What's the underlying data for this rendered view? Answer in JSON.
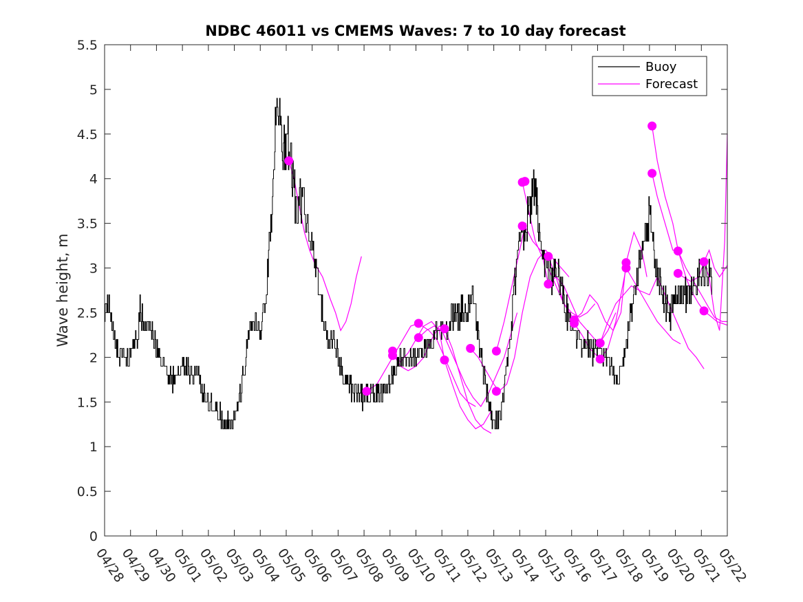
{
  "chart_data": {
    "type": "line",
    "title": "NDBC 46011 vs CMEMS Waves: 7 to 10 day forecast",
    "xlabel": "",
    "ylabel": "Wave height, m",
    "ylim": [
      0,
      5.5
    ],
    "yticks": [
      "0",
      "0.5",
      "1",
      "1.5",
      "2",
      "2.5",
      "3",
      "3.5",
      "4",
      "4.5",
      "5",
      "5.5"
    ],
    "xlim": [
      0,
      24
    ],
    "xticks": [
      "04/28",
      "04/29",
      "04/30",
      "05/01",
      "05/02",
      "05/03",
      "05/04",
      "05/05",
      "05/06",
      "05/07",
      "05/08",
      "05/09",
      "05/10",
      "05/11",
      "05/12",
      "05/13",
      "05/14",
      "05/15",
      "05/16",
      "05/17",
      "05/18",
      "05/19",
      "05/20",
      "05/21",
      "05/22"
    ],
    "grid": false,
    "legend_position": "top-right",
    "legend": [
      "Buoy",
      "Forecast"
    ],
    "colors": {
      "buoy": "#000000",
      "forecast": "#ff00ff"
    },
    "buoy_keypoints": [
      [
        0.0,
        2.5
      ],
      [
        0.15,
        2.65
      ],
      [
        0.35,
        2.25
      ],
      [
        0.5,
        2.05
      ],
      [
        0.8,
        2.0
      ],
      [
        1.0,
        2.05
      ],
      [
        1.3,
        2.3
      ],
      [
        1.35,
        2.6
      ],
      [
        1.5,
        2.3
      ],
      [
        1.8,
        2.35
      ],
      [
        2.0,
        2.1
      ],
      [
        2.3,
        1.9
      ],
      [
        2.6,
        1.75
      ],
      [
        2.8,
        1.8
      ],
      [
        3.1,
        1.9
      ],
      [
        3.4,
        1.8
      ],
      [
        3.6,
        1.9
      ],
      [
        3.8,
        1.6
      ],
      [
        4.0,
        1.5
      ],
      [
        4.3,
        1.4
      ],
      [
        4.6,
        1.3
      ],
      [
        4.9,
        1.25
      ],
      [
        5.2,
        1.55
      ],
      [
        5.4,
        1.9
      ],
      [
        5.6,
        2.3
      ],
      [
        5.8,
        2.4
      ],
      [
        6.0,
        2.3
      ],
      [
        6.2,
        2.6
      ],
      [
        6.35,
        3.3
      ],
      [
        6.5,
        4.0
      ],
      [
        6.6,
        4.9
      ],
      [
        6.75,
        4.7
      ],
      [
        6.9,
        4.3
      ],
      [
        7.1,
        4.4
      ],
      [
        7.25,
        4.0
      ],
      [
        7.4,
        3.6
      ],
      [
        7.6,
        3.8
      ],
      [
        7.8,
        3.5
      ],
      [
        8.0,
        3.2
      ],
      [
        8.2,
        2.9
      ],
      [
        8.4,
        2.5
      ],
      [
        8.6,
        2.2
      ],
      [
        8.8,
        2.2
      ],
      [
        9.0,
        2.0
      ],
      [
        9.2,
        1.8
      ],
      [
        9.4,
        1.7
      ],
      [
        9.6,
        1.6
      ],
      [
        9.9,
        1.55
      ],
      [
        10.2,
        1.6
      ],
      [
        10.5,
        1.6
      ],
      [
        10.8,
        1.6
      ],
      [
        11.1,
        1.8
      ],
      [
        11.4,
        2.0
      ],
      [
        11.7,
        2.0
      ],
      [
        12.0,
        2.0
      ],
      [
        12.3,
        2.1
      ],
      [
        12.6,
        2.2
      ],
      [
        12.9,
        2.3
      ],
      [
        13.2,
        2.3
      ],
      [
        13.5,
        2.5
      ],
      [
        13.8,
        2.5
      ],
      [
        14.0,
        2.55
      ],
      [
        14.2,
        2.6
      ],
      [
        14.4,
        2.2
      ],
      [
        14.6,
        1.8
      ],
      [
        14.8,
        1.5
      ],
      [
        15.0,
        1.25
      ],
      [
        15.2,
        1.3
      ],
      [
        15.4,
        1.6
      ],
      [
        15.6,
        2.1
      ],
      [
        15.8,
        2.8
      ],
      [
        16.0,
        3.3
      ],
      [
        16.2,
        3.4
      ],
      [
        16.4,
        3.75
      ],
      [
        16.6,
        3.9
      ],
      [
        16.8,
        3.4
      ],
      [
        17.0,
        3.0
      ],
      [
        17.2,
        2.9
      ],
      [
        17.4,
        3.0
      ],
      [
        17.6,
        2.8
      ],
      [
        17.8,
        2.5
      ],
      [
        18.0,
        2.35
      ],
      [
        18.2,
        2.2
      ],
      [
        18.4,
        2.15
      ],
      [
        18.6,
        2.15
      ],
      [
        18.8,
        2.05
      ],
      [
        19.0,
        2.1
      ],
      [
        19.2,
        2.05
      ],
      [
        19.4,
        2.0
      ],
      [
        19.6,
        1.85
      ],
      [
        19.8,
        1.8
      ],
      [
        20.0,
        1.95
      ],
      [
        20.2,
        2.3
      ],
      [
        20.4,
        2.7
      ],
      [
        20.6,
        3.0
      ],
      [
        20.8,
        3.3
      ],
      [
        21.0,
        3.6
      ],
      [
        21.2,
        3.1
      ],
      [
        21.4,
        2.8
      ],
      [
        21.6,
        2.6
      ],
      [
        21.8,
        2.5
      ],
      [
        22.0,
        2.6
      ],
      [
        22.2,
        2.7
      ],
      [
        22.4,
        2.7
      ],
      [
        22.6,
        2.7
      ],
      [
        22.8,
        2.85
      ],
      [
        23.0,
        3.0
      ],
      [
        23.2,
        2.95
      ],
      [
        23.4,
        2.85
      ]
    ],
    "forecast_series": [
      [
        [
          7.1,
          4.2
        ],
        [
          7.3,
          4.0
        ],
        [
          7.5,
          3.7
        ],
        [
          7.7,
          3.4
        ],
        [
          7.9,
          3.2
        ],
        [
          8.1,
          3.05
        ],
        [
          8.4,
          2.9
        ],
        [
          8.7,
          2.65
        ],
        [
          8.9,
          2.5
        ],
        [
          9.1,
          2.3
        ],
        [
          9.3,
          2.4
        ],
        [
          9.5,
          2.6
        ],
        [
          9.7,
          2.9
        ],
        [
          9.9,
          3.13
        ]
      ],
      [
        [
          10.1,
          1.62
        ],
        [
          10.5,
          1.7
        ],
        [
          10.9,
          1.9
        ],
        [
          11.2,
          2.05
        ],
        [
          11.5,
          2.2
        ],
        [
          11.8,
          2.35
        ],
        [
          12.1,
          2.38
        ],
        [
          12.5,
          2.3
        ],
        [
          12.8,
          2.2
        ],
        [
          13.1,
          2.0
        ],
        [
          13.4,
          1.8
        ],
        [
          13.7,
          1.6
        ],
        [
          14.0,
          1.5
        ],
        [
          14.3,
          1.45
        ]
      ],
      [
        [
          11.1,
          2.05
        ],
        [
          11.4,
          1.9
        ],
        [
          11.7,
          1.85
        ],
        [
          12.0,
          1.9
        ],
        [
          12.3,
          2.0
        ],
        [
          12.6,
          2.2
        ],
        [
          12.9,
          2.35
        ],
        [
          13.1,
          2.32
        ],
        [
          13.4,
          2.1
        ],
        [
          13.7,
          1.8
        ],
        [
          14.0,
          1.5
        ],
        [
          14.3,
          1.3
        ],
        [
          14.6,
          1.2
        ],
        [
          14.9,
          1.15
        ]
      ],
      [
        [
          11.1,
          2.02
        ],
        [
          11.4,
          1.95
        ],
        [
          11.7,
          2.05
        ],
        [
          12.0,
          2.2
        ],
        [
          12.3,
          2.35
        ],
        [
          12.6,
          2.4
        ],
        [
          12.9,
          2.3
        ],
        [
          13.1,
          1.97
        ],
        [
          13.4,
          1.7
        ],
        [
          13.7,
          1.45
        ],
        [
          14.0,
          1.3
        ],
        [
          14.3,
          1.2
        ],
        [
          14.6,
          1.25
        ],
        [
          14.9,
          1.4
        ]
      ],
      [
        [
          12.1,
          2.22
        ],
        [
          12.4,
          2.3
        ],
        [
          12.7,
          2.35
        ],
        [
          13.0,
          2.3
        ],
        [
          13.3,
          2.1
        ],
        [
          13.6,
          1.9
        ],
        [
          13.9,
          1.7
        ],
        [
          14.2,
          1.55
        ],
        [
          14.5,
          1.45
        ],
        [
          14.8,
          1.6
        ],
        [
          15.1,
          1.8
        ],
        [
          15.4,
          2.0
        ],
        [
          15.7,
          2.3
        ],
        [
          15.9,
          2.5
        ]
      ],
      [
        [
          14.1,
          2.1
        ],
        [
          14.4,
          2.0
        ],
        [
          14.7,
          1.85
        ],
        [
          15.0,
          1.7
        ],
        [
          15.2,
          1.62
        ],
        [
          15.5,
          1.7
        ],
        [
          15.8,
          2.0
        ],
        [
          16.1,
          2.5
        ],
        [
          16.4,
          2.9
        ],
        [
          16.7,
          3.1
        ],
        [
          17.0,
          3.2
        ],
        [
          17.3,
          3.1
        ],
        [
          17.6,
          3.0
        ],
        [
          17.9,
          2.9
        ]
      ],
      [
        [
          15.1,
          2.07
        ],
        [
          15.4,
          2.4
        ],
        [
          15.7,
          2.8
        ],
        [
          16.0,
          3.2
        ],
        [
          16.2,
          3.47
        ],
        [
          16.5,
          3.3
        ],
        [
          16.8,
          3.2
        ],
        [
          17.1,
          3.13
        ],
        [
          17.4,
          2.9
        ],
        [
          17.7,
          2.6
        ],
        [
          18.0,
          2.5
        ],
        [
          18.3,
          2.45
        ],
        [
          18.6,
          2.5
        ],
        [
          18.9,
          2.6
        ]
      ],
      [
        [
          16.1,
          3.96
        ],
        [
          16.3,
          3.7
        ],
        [
          16.6,
          3.3
        ],
        [
          16.9,
          3.1
        ],
        [
          17.1,
          2.82
        ],
        [
          17.4,
          2.9
        ],
        [
          17.7,
          2.8
        ],
        [
          18.0,
          2.6
        ],
        [
          18.3,
          2.4
        ],
        [
          18.6,
          2.3
        ],
        [
          18.9,
          2.2
        ],
        [
          19.1,
          2.17
        ],
        [
          19.4,
          2.3
        ],
        [
          19.7,
          2.5
        ]
      ],
      [
        [
          17.1,
          3.0
        ],
        [
          17.4,
          2.8
        ],
        [
          17.7,
          2.6
        ],
        [
          18.1,
          2.42
        ],
        [
          18.4,
          2.5
        ],
        [
          18.7,
          2.7
        ],
        [
          19.0,
          2.6
        ],
        [
          19.3,
          2.4
        ],
        [
          19.6,
          2.3
        ],
        [
          19.9,
          2.5
        ],
        [
          20.1,
          3.06
        ],
        [
          20.4,
          3.4
        ],
        [
          20.7,
          3.2
        ],
        [
          20.9,
          2.9
        ]
      ],
      [
        [
          18.1,
          2.38
        ],
        [
          18.4,
          2.25
        ],
        [
          18.7,
          2.1
        ],
        [
          19.1,
          1.98
        ],
        [
          19.4,
          2.1
        ],
        [
          19.7,
          2.4
        ],
        [
          20.1,
          3.0
        ],
        [
          20.4,
          2.85
        ],
        [
          20.7,
          2.7
        ],
        [
          21.0,
          2.55
        ],
        [
          21.3,
          2.4
        ],
        [
          21.6,
          2.3
        ],
        [
          21.9,
          2.2
        ],
        [
          22.2,
          2.15
        ]
      ],
      [
        [
          19.1,
          2.16
        ],
        [
          19.4,
          2.4
        ],
        [
          19.7,
          2.6
        ],
        [
          20.0,
          2.7
        ],
        [
          20.3,
          2.8
        ],
        [
          20.6,
          2.75
        ],
        [
          21.0,
          2.7
        ],
        [
          21.3,
          2.9
        ],
        [
          21.6,
          2.7
        ],
        [
          21.9,
          2.5
        ],
        [
          22.2,
          2.3
        ],
        [
          22.5,
          2.1
        ],
        [
          22.8,
          2.0
        ],
        [
          23.1,
          1.87
        ]
      ],
      [
        [
          21.1,
          4.59
        ],
        [
          21.3,
          4.2
        ],
        [
          21.6,
          3.8
        ],
        [
          21.9,
          3.5
        ],
        [
          22.1,
          3.2
        ],
        [
          22.4,
          2.9
        ],
        [
          22.6,
          2.75
        ],
        [
          22.9,
          2.6
        ],
        [
          23.1,
          2.52
        ],
        [
          23.4,
          2.45
        ],
        [
          23.6,
          2.4
        ],
        [
          23.8,
          2.38
        ],
        [
          24.0,
          2.36
        ]
      ],
      [
        [
          21.1,
          4.06
        ],
        [
          21.3,
          3.8
        ],
        [
          21.6,
          3.5
        ],
        [
          21.9,
          3.2
        ],
        [
          22.1,
          3.19
        ],
        [
          22.4,
          3.0
        ],
        [
          22.7,
          2.85
        ],
        [
          23.0,
          2.7
        ],
        [
          23.2,
          2.6
        ],
        [
          23.5,
          2.45
        ],
        [
          23.8,
          2.4
        ],
        [
          24.0,
          2.4
        ]
      ],
      [
        [
          22.1,
          2.94
        ],
        [
          22.3,
          2.9
        ],
        [
          22.6,
          2.85
        ],
        [
          22.9,
          2.9
        ],
        [
          23.1,
          3.07
        ],
        [
          23.3,
          3.2
        ],
        [
          23.5,
          3.0
        ],
        [
          23.7,
          2.9
        ],
        [
          24.0,
          3.03
        ]
      ],
      [
        [
          23.1,
          3.05
        ],
        [
          23.3,
          2.9
        ],
        [
          23.5,
          2.5
        ],
        [
          23.7,
          2.3
        ],
        [
          23.9,
          3.3
        ],
        [
          24.0,
          4.5
        ]
      ]
    ],
    "forecast_markers": [
      [
        7.1,
        4.2
      ],
      [
        10.1,
        1.62
      ],
      [
        11.1,
        2.07
      ],
      [
        11.1,
        2.02
      ],
      [
        12.1,
        2.38
      ],
      [
        12.1,
        2.22
      ],
      [
        13.1,
        2.32
      ],
      [
        13.1,
        1.97
      ],
      [
        14.1,
        2.1
      ],
      [
        15.1,
        2.07
      ],
      [
        15.1,
        1.62
      ],
      [
        16.1,
        3.96
      ],
      [
        16.2,
        3.97
      ],
      [
        16.1,
        3.47
      ],
      [
        17.1,
        3.13
      ],
      [
        17.1,
        2.82
      ],
      [
        18.1,
        2.42
      ],
      [
        18.1,
        2.38
      ],
      [
        19.1,
        2.16
      ],
      [
        19.1,
        1.98
      ],
      [
        20.1,
        3.06
      ],
      [
        20.1,
        3.0
      ],
      [
        21.1,
        4.59
      ],
      [
        21.1,
        4.06
      ],
      [
        22.1,
        3.19
      ],
      [
        22.1,
        2.94
      ],
      [
        23.1,
        3.07
      ],
      [
        23.1,
        2.52
      ]
    ]
  }
}
